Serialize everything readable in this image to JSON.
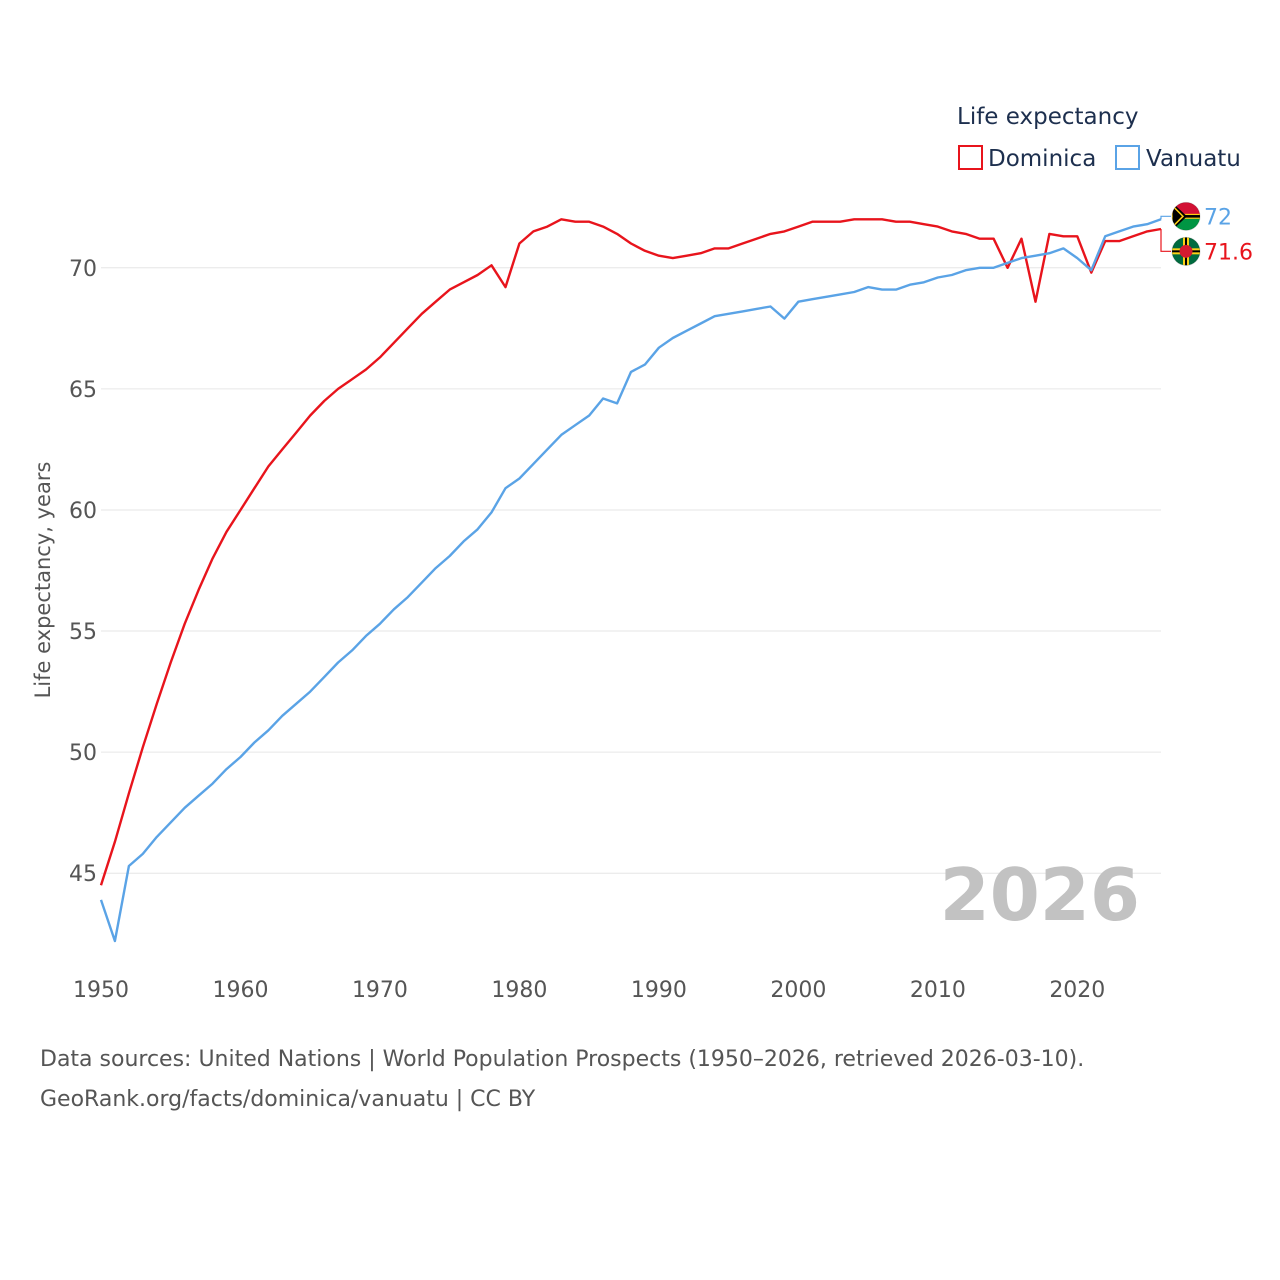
{
  "chart_data": {
    "type": "line",
    "title": "Life expectancy",
    "xlabel": "",
    "ylabel": "Life expectancy, years",
    "xlim": [
      1950,
      2026
    ],
    "ylim": [
      41.5,
      73.5
    ],
    "yticks": [
      45,
      50,
      55,
      60,
      65,
      70
    ],
    "xticks": [
      1950,
      1960,
      1970,
      1980,
      1990,
      2000,
      2010,
      2020
    ],
    "year_label": "2026",
    "series": [
      {
        "name": "Dominica",
        "color": "#e8141c",
        "end_label": "71.6",
        "flag": "dominica-flag-icon",
        "points": [
          [
            1950,
            44.5
          ],
          [
            1951,
            46.3
          ],
          [
            1952,
            48.3
          ],
          [
            1953,
            50.2
          ],
          [
            1954,
            52.0
          ],
          [
            1955,
            53.7
          ],
          [
            1956,
            55.3
          ],
          [
            1957,
            56.7
          ],
          [
            1958,
            58.0
          ],
          [
            1959,
            59.1
          ],
          [
            1960,
            60.0
          ],
          [
            1961,
            60.9
          ],
          [
            1962,
            61.8
          ],
          [
            1963,
            62.5
          ],
          [
            1964,
            63.2
          ],
          [
            1965,
            63.9
          ],
          [
            1966,
            64.5
          ],
          [
            1967,
            65.0
          ],
          [
            1968,
            65.4
          ],
          [
            1969,
            65.8
          ],
          [
            1970,
            66.3
          ],
          [
            1971,
            66.9
          ],
          [
            1972,
            67.5
          ],
          [
            1973,
            68.1
          ],
          [
            1974,
            68.6
          ],
          [
            1975,
            69.1
          ],
          [
            1976,
            69.4
          ],
          [
            1977,
            69.7
          ],
          [
            1978,
            70.1
          ],
          [
            1979,
            69.2
          ],
          [
            1980,
            71.0
          ],
          [
            1981,
            71.5
          ],
          [
            1982,
            71.7
          ],
          [
            1983,
            72.0
          ],
          [
            1984,
            71.9
          ],
          [
            1985,
            71.9
          ],
          [
            1986,
            71.7
          ],
          [
            1987,
            71.4
          ],
          [
            1988,
            71.0
          ],
          [
            1989,
            70.7
          ],
          [
            1990,
            70.5
          ],
          [
            1991,
            70.4
          ],
          [
            1992,
            70.5
          ],
          [
            1993,
            70.6
          ],
          [
            1994,
            70.8
          ],
          [
            1995,
            70.8
          ],
          [
            1996,
            71.0
          ],
          [
            1997,
            71.2
          ],
          [
            1998,
            71.4
          ],
          [
            1999,
            71.5
          ],
          [
            2000,
            71.7
          ],
          [
            2001,
            71.9
          ],
          [
            2002,
            71.9
          ],
          [
            2003,
            71.9
          ],
          [
            2004,
            72.0
          ],
          [
            2005,
            72.0
          ],
          [
            2006,
            72.0
          ],
          [
            2007,
            71.9
          ],
          [
            2008,
            71.9
          ],
          [
            2009,
            71.8
          ],
          [
            2010,
            71.7
          ],
          [
            2011,
            71.5
          ],
          [
            2012,
            71.4
          ],
          [
            2013,
            71.2
          ],
          [
            2014,
            71.2
          ],
          [
            2015,
            70.0
          ],
          [
            2016,
            71.2
          ],
          [
            2017,
            68.6
          ],
          [
            2018,
            71.4
          ],
          [
            2019,
            71.3
          ],
          [
            2020,
            71.3
          ],
          [
            2021,
            69.8
          ],
          [
            2022,
            71.1
          ],
          [
            2023,
            71.1
          ],
          [
            2024,
            71.3
          ],
          [
            2025,
            71.5
          ],
          [
            2026,
            71.6
          ]
        ]
      },
      {
        "name": "Vanuatu",
        "color": "#5aa3e6",
        "end_label": "72",
        "flag": "vanuatu-flag-icon",
        "points": [
          [
            1950,
            43.9
          ],
          [
            1951,
            42.2
          ],
          [
            1952,
            45.3
          ],
          [
            1953,
            45.8
          ],
          [
            1954,
            46.5
          ],
          [
            1955,
            47.1
          ],
          [
            1956,
            47.7
          ],
          [
            1957,
            48.2
          ],
          [
            1958,
            48.7
          ],
          [
            1959,
            49.3
          ],
          [
            1960,
            49.8
          ],
          [
            1961,
            50.4
          ],
          [
            1962,
            50.9
          ],
          [
            1963,
            51.5
          ],
          [
            1964,
            52.0
          ],
          [
            1965,
            52.5
          ],
          [
            1966,
            53.1
          ],
          [
            1967,
            53.7
          ],
          [
            1968,
            54.2
          ],
          [
            1969,
            54.8
          ],
          [
            1970,
            55.3
          ],
          [
            1971,
            55.9
          ],
          [
            1972,
            56.4
          ],
          [
            1973,
            57.0
          ],
          [
            1974,
            57.6
          ],
          [
            1975,
            58.1
          ],
          [
            1976,
            58.7
          ],
          [
            1977,
            59.2
          ],
          [
            1978,
            59.9
          ],
          [
            1979,
            60.9
          ],
          [
            1980,
            61.3
          ],
          [
            1981,
            61.9
          ],
          [
            1982,
            62.5
          ],
          [
            1983,
            63.1
          ],
          [
            1984,
            63.5
          ],
          [
            1985,
            63.9
          ],
          [
            1986,
            64.6
          ],
          [
            1987,
            64.4
          ],
          [
            1988,
            65.7
          ],
          [
            1989,
            66.0
          ],
          [
            1990,
            66.7
          ],
          [
            1991,
            67.1
          ],
          [
            1992,
            67.4
          ],
          [
            1993,
            67.7
          ],
          [
            1994,
            68.0
          ],
          [
            1995,
            68.1
          ],
          [
            1996,
            68.2
          ],
          [
            1997,
            68.3
          ],
          [
            1998,
            68.4
          ],
          [
            1999,
            67.9
          ],
          [
            2000,
            68.6
          ],
          [
            2001,
            68.7
          ],
          [
            2002,
            68.8
          ],
          [
            2003,
            68.9
          ],
          [
            2004,
            69.0
          ],
          [
            2005,
            69.2
          ],
          [
            2006,
            69.1
          ],
          [
            2007,
            69.1
          ],
          [
            2008,
            69.3
          ],
          [
            2009,
            69.4
          ],
          [
            2010,
            69.6
          ],
          [
            2011,
            69.7
          ],
          [
            2012,
            69.9
          ],
          [
            2013,
            70.0
          ],
          [
            2014,
            70.0
          ],
          [
            2015,
            70.2
          ],
          [
            2016,
            70.4
          ],
          [
            2017,
            70.5
          ],
          [
            2018,
            70.6
          ],
          [
            2019,
            70.8
          ],
          [
            2020,
            70.4
          ],
          [
            2021,
            69.9
          ],
          [
            2022,
            71.3
          ],
          [
            2023,
            71.5
          ],
          [
            2024,
            71.7
          ],
          [
            2025,
            71.8
          ],
          [
            2026,
            72.0
          ]
        ]
      }
    ]
  },
  "source": {
    "line1": "Data sources: United Nations | World Population Prospects (1950–2026, retrieved 2026-03-10).",
    "line2": "GeoRank.org/facts/dominica/vanuatu | CC BY"
  }
}
